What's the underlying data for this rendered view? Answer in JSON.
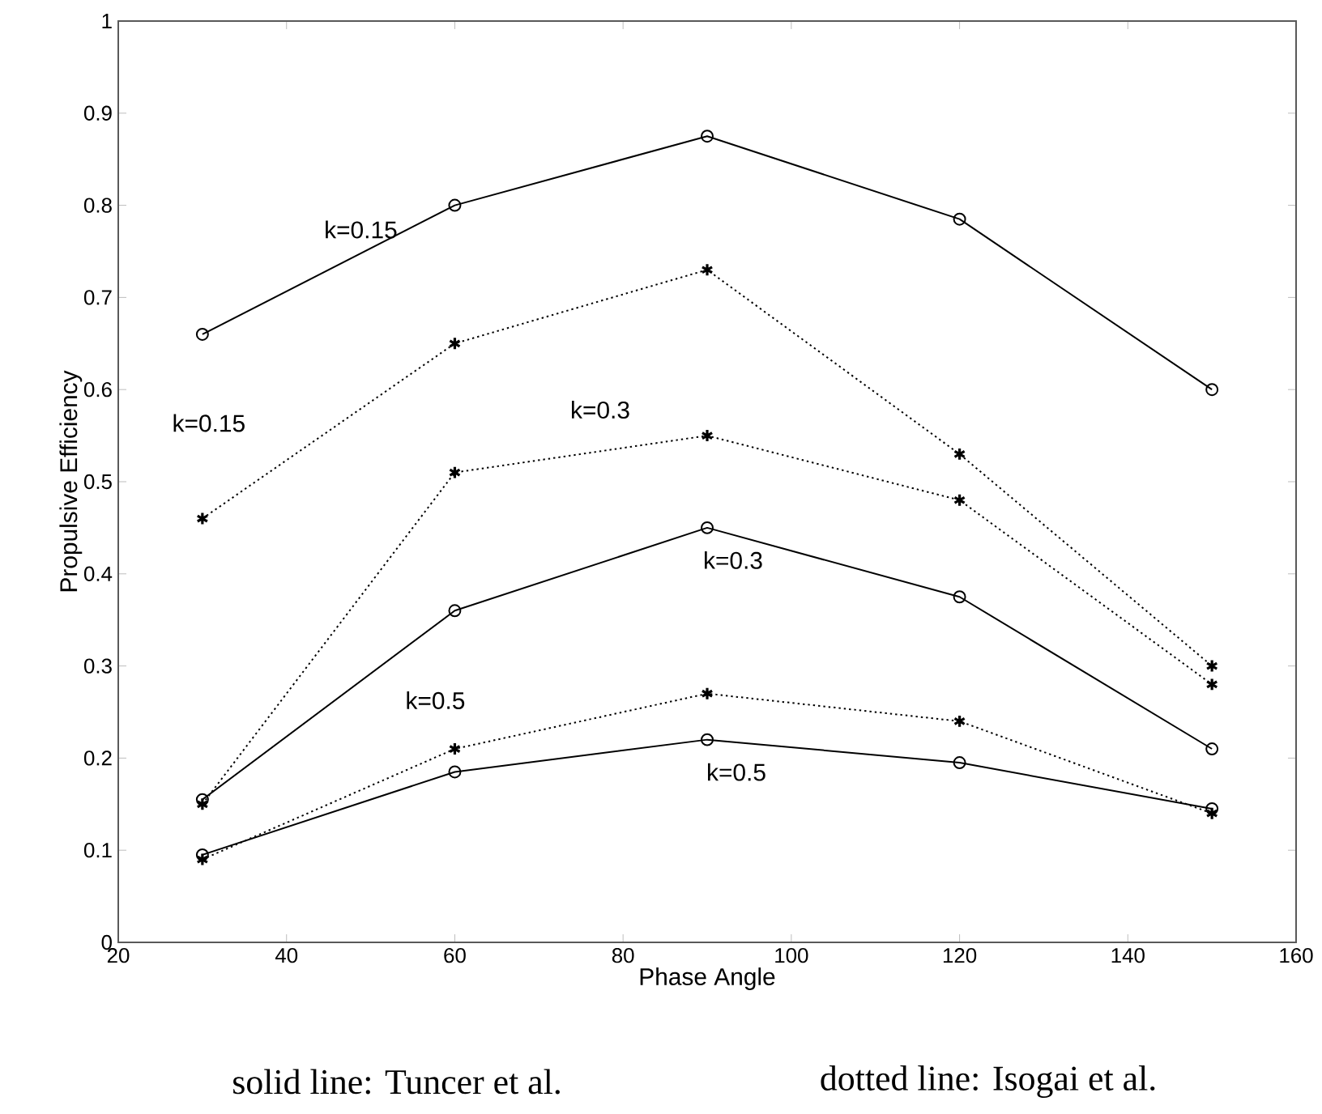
{
  "chart_data": {
    "type": "line",
    "x": [
      30,
      60,
      90,
      120,
      150
    ],
    "series": [
      {
        "name": "k=0.15",
        "color": "#000000",
        "line_style": "solid",
        "marker": "circle",
        "values": [
          0.66,
          0.8,
          0.875,
          0.785,
          0.6
        ]
      },
      {
        "name": "k=0.15",
        "color": "#000000",
        "line_style": "dotted",
        "marker": "cross",
        "values": [
          0.46,
          0.65,
          0.73,
          0.53,
          0.3
        ]
      },
      {
        "name": "k=0.3",
        "color": "#000000",
        "line_style": "dotted",
        "marker": "cross",
        "values": [
          0.15,
          0.51,
          0.55,
          0.48,
          0.28
        ]
      },
      {
        "name": "k=0.3",
        "color": "#000000",
        "line_style": "solid",
        "marker": "circle",
        "values": [
          0.155,
          0.36,
          0.45,
          0.375,
          0.21
        ]
      },
      {
        "name": "k=0.5",
        "color": "#000000",
        "line_style": "dotted",
        "marker": "cross",
        "values": [
          0.09,
          0.21,
          0.27,
          0.24,
          0.14
        ]
      },
      {
        "name": "k=0.5",
        "color": "#000000",
        "line_style": "solid",
        "marker": "circle",
        "values": [
          0.095,
          0.185,
          0.22,
          0.195,
          0.145
        ]
      }
    ],
    "xlabel": "Phase Angle",
    "ylabel": "Propulsive Efficiency",
    "xlim": [
      20,
      160
    ],
    "xticks": [
      20,
      40,
      60,
      80,
      100,
      120,
      140,
      160
    ],
    "ylim": [
      0,
      1
    ],
    "yticks": [
      0,
      0.1,
      0.2,
      0.3,
      0.4,
      0.5,
      0.6,
      0.7,
      0.8,
      0.9,
      1
    ],
    "grid": false,
    "legend": false,
    "annotations": [
      "solid line: Tuncer et al.",
      "dotted line: Isogai et al."
    ]
  }
}
